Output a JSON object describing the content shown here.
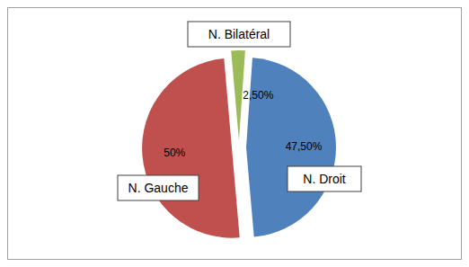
{
  "chart_data": {
    "type": "pie",
    "categories": [
      "N. Bilatéral",
      "N. Droit",
      "N. Gauche"
    ],
    "values": [
      2.5,
      47.5,
      50
    ],
    "value_labels": [
      "2,50%",
      "47,50%",
      "50%"
    ],
    "colors": [
      "#9bbb59",
      "#4f81bd",
      "#c0504d"
    ],
    "data_labels": true
  }
}
